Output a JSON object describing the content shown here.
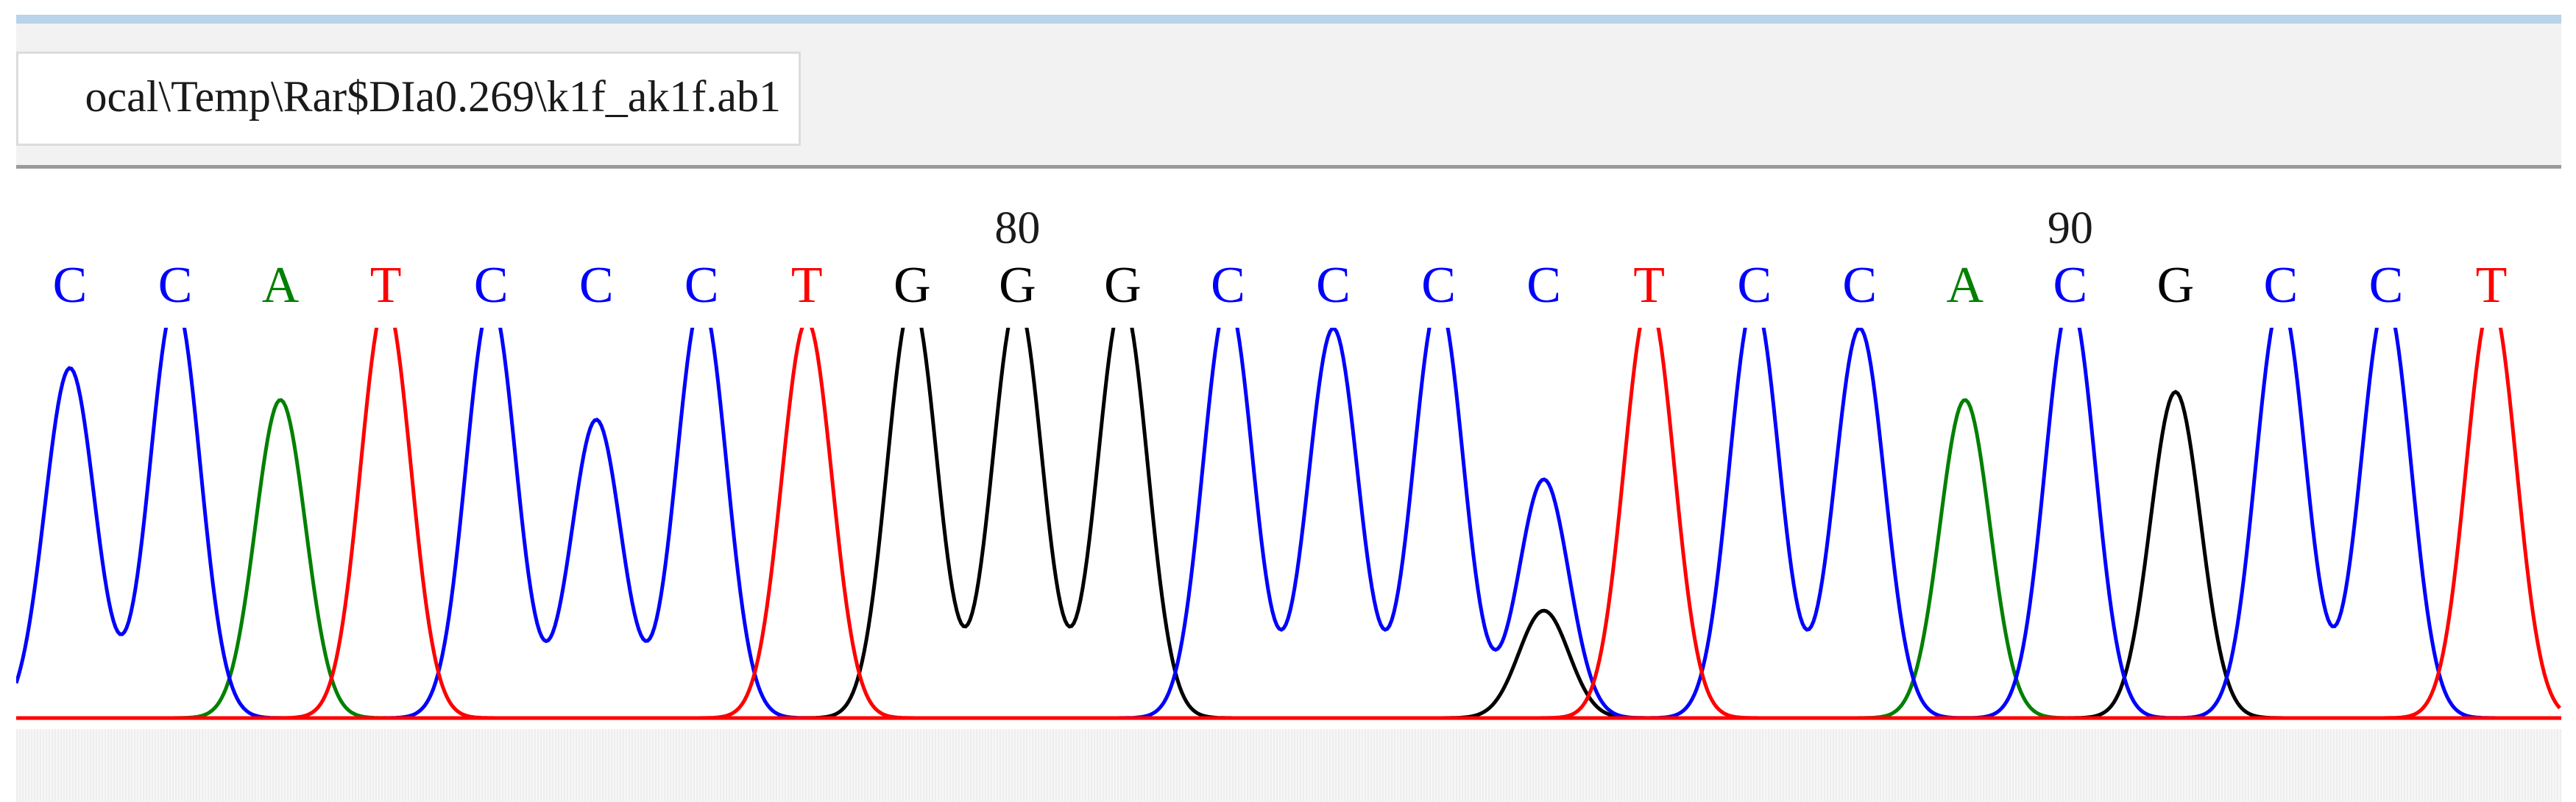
{
  "file_path": "ocal\\Temp\\Rar$DIa0.269\\k1f_ak1f.ab1",
  "colors": {
    "A": "#008000",
    "C": "#0000ff",
    "G": "#000000",
    "T": "#ff0000",
    "rule": "#b8d3ea",
    "toolbar": "#f2f2f2"
  },
  "position_markers": [
    "80",
    "90"
  ],
  "chart_data": {
    "type": "line",
    "title": "",
    "ylabel": "",
    "bases": [
      "C",
      "C",
      "A",
      "T",
      "C",
      "C",
      "C",
      "T",
      "G",
      "G",
      "G",
      "C",
      "C",
      "C",
      "C",
      "T",
      "C",
      "C",
      "A",
      "C",
      "G",
      "C",
      "C",
      "T"
    ],
    "position_labels": [
      {
        "label": "80",
        "base_index": 9
      },
      {
        "label": "90",
        "base_index": 19
      }
    ],
    "peaks": [
      {
        "channel": "C",
        "height": 0.88
      },
      {
        "channel": "C",
        "height": 1.05
      },
      {
        "channel": "A",
        "height": 0.8
      },
      {
        "channel": "T",
        "height": 1.05
      },
      {
        "channel": "C",
        "height": 1.05
      },
      {
        "channel": "C",
        "height": 0.75
      },
      {
        "channel": "C",
        "height": 1.05
      },
      {
        "channel": "T",
        "height": 1.0
      },
      {
        "channel": "G",
        "height": 1.05
      },
      {
        "channel": "G",
        "height": 1.05
      },
      {
        "channel": "G",
        "height": 1.05
      },
      {
        "channel": "C",
        "height": 1.05
      },
      {
        "channel": "C",
        "height": 0.98
      },
      {
        "channel": "C",
        "height": 1.05
      },
      {
        "channel": "C",
        "height": 0.6
      },
      {
        "channel": "T",
        "height": 1.05
      },
      {
        "channel": "C",
        "height": 1.05
      },
      {
        "channel": "C",
        "height": 0.98
      },
      {
        "channel": "A",
        "height": 0.8
      },
      {
        "channel": "C",
        "height": 1.05
      },
      {
        "channel": "G",
        "height": 0.82
      },
      {
        "channel": "C",
        "height": 1.05
      },
      {
        "channel": "C",
        "height": 1.05
      },
      {
        "channel": "T",
        "height": 1.05
      }
    ],
    "minor_peaks": [
      {
        "channel": "G",
        "height": 0.27,
        "base_index": 14
      }
    ]
  }
}
